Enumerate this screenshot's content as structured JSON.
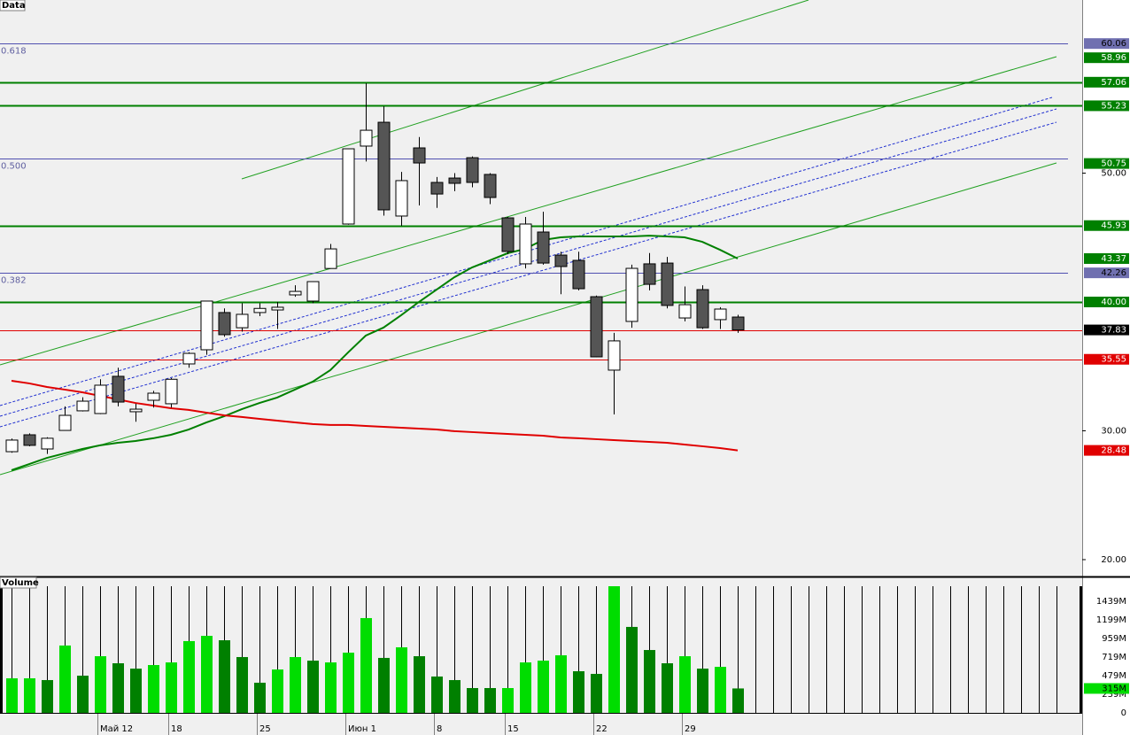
{
  "chart_data": [
    {
      "type": "candlestick",
      "title": "Data",
      "categories": [
        "",
        "",
        "",
        "",
        "",
        "Май 12",
        "",
        "",
        "",
        "18",
        "",
        "",
        "",
        "",
        "25",
        "",
        "",
        "",
        "",
        "Июн 1",
        "",
        "",
        "",
        "",
        "8",
        "",
        "",
        "",
        "15",
        "",
        "",
        "",
        "",
        "22",
        "",
        "",
        "",
        "",
        "29",
        "",
        "",
        ""
      ],
      "open": [
        28.38,
        29.69,
        28.59,
        30.03,
        31.55,
        31.34,
        34.23,
        31.48,
        32.37,
        32.1,
        35.19,
        36.29,
        39.18,
        38.0,
        39.18,
        39.38,
        40.55,
        40.07,
        42.6,
        46.05,
        52.1,
        53.95,
        46.67,
        51.96,
        49.28,
        49.62,
        51.2,
        49.9,
        46.53,
        42.96,
        45.43,
        43.64,
        43.23,
        40.41,
        34.71,
        38.49,
        42.96,
        43.02,
        38.76,
        40.96,
        38.63,
        38.83
      ],
      "high": [
        29.4,
        29.8,
        29.5,
        31.9,
        32.6,
        34.0,
        34.9,
        32.1,
        33.1,
        34.1,
        36.1,
        40.1,
        39.5,
        39.9,
        39.9,
        40.0,
        41.3,
        41.6,
        44.5,
        51.9,
        56.98,
        55.19,
        50.1,
        52.8,
        49.7,
        50.0,
        51.3,
        50.0,
        46.6,
        46.6,
        47.0,
        43.9,
        43.9,
        40.5,
        37.6,
        42.9,
        43.8,
        43.5,
        41.2,
        41.3,
        39.6,
        39.0
      ],
      "low": [
        28.3,
        28.8,
        28.2,
        30.0,
        31.5,
        31.3,
        31.9,
        30.7,
        31.8,
        31.8,
        34.9,
        35.9,
        37.3,
        37.7,
        38.9,
        37.9,
        40.4,
        39.9,
        42.6,
        46.0,
        50.9,
        46.7,
        45.9,
        47.49,
        47.3,
        48.6,
        48.9,
        47.6,
        43.7,
        42.6,
        42.9,
        40.6,
        40.9,
        35.7,
        31.27,
        38.0,
        40.9,
        39.5,
        38.5,
        37.9,
        37.9,
        37.6
      ],
      "close": [
        29.28,
        28.87,
        29.42,
        31.2,
        32.3,
        33.54,
        32.23,
        31.68,
        32.92,
        34.0,
        36.01,
        40.07,
        37.46,
        39.04,
        39.5,
        39.59,
        40.82,
        41.58,
        44.12,
        51.89,
        53.33,
        47.15,
        49.42,
        50.79,
        48.38,
        49.21,
        49.28,
        48.11,
        43.92,
        46.05,
        43.02,
        42.75,
        41.03,
        35.74,
        36.98,
        42.61,
        41.37,
        39.73,
        39.79,
        38.0,
        39.45,
        37.83
      ],
      "up_color": "#ffffff",
      "down_color": "#555555",
      "moving_averages": [
        {
          "color": "#008000",
          "values": [
            26.94,
            27.42,
            27.9,
            28.25,
            28.59,
            28.87,
            29.07,
            29.21,
            29.42,
            29.69,
            30.1,
            30.65,
            31.13,
            31.68,
            32.16,
            32.58,
            33.2,
            33.81,
            34.71,
            36.08,
            37.39,
            38.01,
            38.97,
            40.0,
            40.96,
            41.92,
            42.68,
            43.23,
            43.78,
            44.12,
            44.81,
            45.02,
            45.09,
            45.09,
            45.09,
            45.09,
            45.15,
            45.09,
            45.02,
            44.67,
            44.05,
            43.37
          ]
        },
        {
          "color": "#e00000",
          "values": [
            33.88,
            33.68,
            33.4,
            33.2,
            32.99,
            32.71,
            32.44,
            32.16,
            31.96,
            31.75,
            31.62,
            31.41,
            31.2,
            31.07,
            30.93,
            30.79,
            30.65,
            30.52,
            30.45,
            30.45,
            30.38,
            30.31,
            30.24,
            30.17,
            30.1,
            29.97,
            29.9,
            29.83,
            29.76,
            29.69,
            29.62,
            29.48,
            29.42,
            29.35,
            29.28,
            29.21,
            29.14,
            29.07,
            28.93,
            28.8,
            28.66,
            28.48
          ]
        }
      ],
      "fib_levels": [
        {
          "value": 60.06,
          "label": "0.618"
        },
        {
          "value": 51.16,
          "label": "0.500"
        },
        {
          "value": 42.26,
          "label": "0.382"
        }
      ],
      "levels": [
        {
          "value": 60.06,
          "label": "60.06",
          "color": "#7070b0",
          "line": false
        },
        {
          "value": 58.96,
          "label": "58.96",
          "color": "#008000",
          "line": false
        },
        {
          "value": 57.06,
          "label": "57.06",
          "color": "#008000",
          "line": true
        },
        {
          "value": 55.23,
          "label": "55.23",
          "color": "#008000",
          "line": true
        },
        {
          "value": 50.75,
          "label": "50.75",
          "color": "#008000",
          "line": false
        },
        {
          "value": 45.93,
          "label": "45.93",
          "color": "#008000",
          "line": true
        },
        {
          "value": 43.37,
          "label": "43.37",
          "color": "#008000",
          "line": false
        },
        {
          "value": 42.26,
          "label": "42.26",
          "color": "#7070b0",
          "line": false
        },
        {
          "value": 40,
          "label": "40.00",
          "color": "#008000",
          "line": true
        },
        {
          "value": 37.83,
          "label": "37.83",
          "color": "#000000",
          "line": true
        },
        {
          "value": 35.55,
          "label": "35.55",
          "color": "#e00000",
          "line": true
        },
        {
          "value": 28.48,
          "label": "28.48",
          "color": "#e00000",
          "line": false
        }
      ],
      "ylim": [
        18.76,
        63.44
      ],
      "yticks": [
        {
          "value": 50,
          "label": "50.00"
        },
        {
          "value": 30,
          "label": "30.00"
        },
        {
          "value": 20,
          "label": "20.00"
        }
      ]
    },
    {
      "type": "bar",
      "title": "Volume",
      "values": [
        446,
        446,
        423,
        869,
        480,
        731,
        640,
        571,
        617,
        651,
        926,
        994,
        937,
        720,
        389,
        560,
        720,
        674,
        651,
        777,
        1223,
        709,
        846,
        731,
        469,
        423,
        320,
        320,
        320,
        651,
        674,
        743,
        537,
        503,
        1634,
        1109,
        811,
        640,
        731,
        571,
        594,
        315
      ],
      "colors": [
        "#00dd00",
        "#00dd00",
        "#008000",
        "#00dd00",
        "#008000",
        "#00dd00",
        "#008000",
        "#008000",
        "#00dd00",
        "#00dd00",
        "#00dd00",
        "#00dd00",
        "#008000",
        "#008000",
        "#008000",
        "#00dd00",
        "#00dd00",
        "#008000",
        "#00dd00",
        "#00dd00",
        "#00dd00",
        "#008000",
        "#00dd00",
        "#008000",
        "#008000",
        "#008000",
        "#008000",
        "#008000",
        "#00dd00",
        "#00dd00",
        "#00dd00",
        "#00dd00",
        "#008000",
        "#008000",
        "#00dd00",
        "#008000",
        "#008000",
        "#008000",
        "#00dd00",
        "#008000",
        "#00dd00",
        "#008000"
      ],
      "ylim": [
        0,
        1634
      ],
      "yticks": [
        {
          "value": 1439,
          "label": "1439M"
        },
        {
          "value": 1199,
          "label": "1199M"
        },
        {
          "value": 959,
          "label": "959M"
        },
        {
          "value": 719,
          "label": "719M"
        },
        {
          "value": 479,
          "label": "479M"
        },
        {
          "value": 239,
          "label": "239M"
        },
        0
      ],
      "last_label": {
        "value": 315,
        "label": "315M",
        "color": "#00dd00"
      }
    }
  ]
}
